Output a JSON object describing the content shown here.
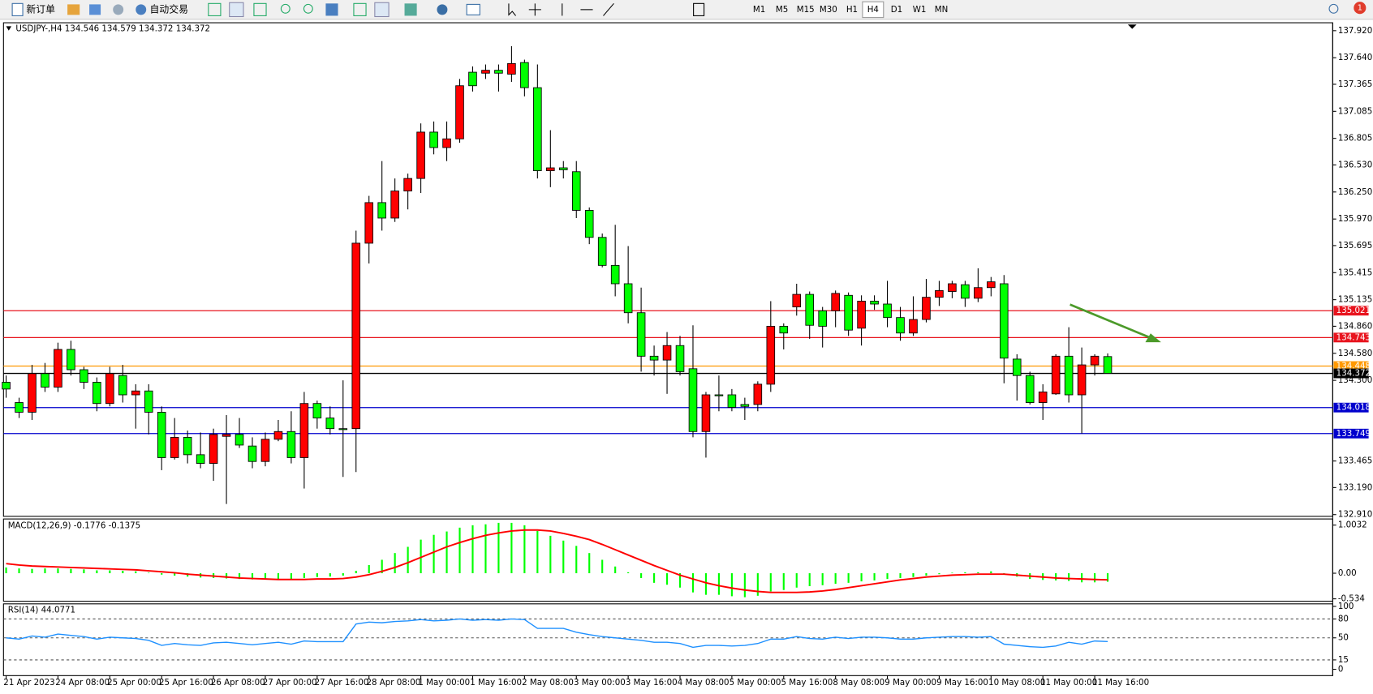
{
  "toolbar": {
    "buttons": [
      "新订单",
      "自动交易"
    ],
    "timeframes": [
      "M1",
      "M5",
      "M15",
      "M30",
      "H1",
      "H4",
      "D1",
      "W1",
      "MN"
    ],
    "active_timeframe_index": 5,
    "notification_count": 1
  },
  "chart_data": [
    {
      "type": "candlestick",
      "title": "USDJPY-,H4  134.546 134.579 134.372 134.372",
      "categories": [
        "21 Apr 2023",
        null,
        null,
        null,
        "24 Apr 08:00",
        null,
        null,
        null,
        "25 Apr 00:00",
        null,
        null,
        null,
        "25 Apr 16:00",
        null,
        null,
        null,
        "26 Apr 08:00",
        null,
        null,
        null,
        "27 Apr 00:00",
        null,
        null,
        null,
        "27 Apr 16:00",
        null,
        null,
        null,
        "28 Apr 08:00",
        null,
        null,
        null,
        "1 May 00:00",
        null,
        null,
        null,
        "1 May 16:00",
        null,
        null,
        null,
        "2 May 08:00",
        null,
        null,
        null,
        "3 May 00:00",
        null,
        null,
        null,
        "3 May 16:00",
        null,
        null,
        null,
        "4 May 08:00",
        null,
        null,
        null,
        "5 May 00:00",
        null,
        null,
        null,
        "5 May 16:00",
        null,
        null,
        null,
        "8 May 08:00",
        null,
        null,
        null,
        "9 May 00:00",
        null,
        null,
        null,
        "9 May 16:00",
        null,
        null,
        null,
        "10 May 08:00",
        null,
        null,
        null,
        "11 May 00:00",
        null,
        null,
        null,
        "11 May 16:00",
        null
      ],
      "open": [
        134.28,
        134.07,
        133.97,
        134.37,
        134.23,
        134.62,
        134.41,
        134.28,
        134.06,
        134.35,
        134.15,
        134.19,
        133.97,
        133.5,
        133.71,
        133.53,
        133.44,
        133.72,
        133.74,
        133.62,
        133.46,
        133.69,
        133.77,
        133.5,
        134.06,
        133.91,
        133.8,
        133.8,
        135.72,
        136.14,
        135.98,
        136.26,
        136.39,
        136.87,
        136.71,
        136.8,
        137.49,
        137.48,
        137.51,
        137.47,
        137.59,
        137.33,
        136.47,
        136.5,
        136.46,
        136.06,
        135.78,
        135.49,
        135.3,
        135.0,
        134.55,
        134.51,
        134.66,
        134.42,
        133.77,
        134.15,
        134.15,
        134.05,
        134.05,
        134.26,
        134.86,
        135.06,
        135.19,
        135.02,
        135.02,
        135.18,
        134.84,
        135.12,
        135.09,
        134.95,
        134.79,
        134.93,
        135.16,
        135.22,
        135.29,
        135.15,
        135.26,
        135.3,
        134.52,
        134.35,
        134.07,
        134.16,
        134.55,
        134.15,
        134.46,
        134.546
      ],
      "high": [
        134.35,
        134.12,
        134.46,
        134.48,
        134.69,
        134.71,
        134.44,
        134.33,
        134.44,
        134.46,
        134.26,
        134.26,
        134.03,
        133.91,
        133.78,
        133.76,
        133.8,
        133.94,
        133.91,
        133.71,
        133.76,
        133.89,
        133.98,
        134.18,
        134.09,
        134.03,
        134.3,
        135.85,
        136.21,
        136.57,
        136.39,
        136.44,
        136.96,
        136.98,
        136.98,
        137.42,
        137.55,
        137.57,
        137.57,
        137.76,
        137.62,
        137.57,
        136.89,
        136.57,
        136.57,
        136.09,
        135.82,
        135.91,
        135.69,
        135.26,
        134.66,
        134.8,
        134.76,
        134.87,
        134.18,
        134.35,
        134.21,
        134.12,
        134.29,
        135.12,
        134.89,
        135.3,
        135.22,
        135.06,
        135.23,
        135.21,
        135.18,
        135.18,
        135.33,
        135.06,
        135.17,
        135.35,
        135.33,
        135.33,
        135.33,
        135.46,
        135.37,
        135.39,
        134.57,
        134.39,
        134.26,
        134.57,
        134.85,
        134.64,
        134.57,
        134.579
      ],
      "low": [
        134.12,
        133.91,
        133.89,
        134.18,
        134.18,
        134.35,
        134.21,
        133.98,
        134.03,
        134.07,
        133.8,
        133.74,
        133.37,
        133.48,
        133.44,
        133.39,
        133.26,
        133.02,
        133.6,
        133.39,
        133.41,
        133.67,
        133.44,
        133.18,
        133.8,
        133.74,
        133.3,
        133.35,
        135.51,
        135.85,
        135.94,
        136.07,
        136.24,
        136.64,
        136.57,
        136.76,
        137.29,
        137.42,
        137.29,
        137.39,
        137.24,
        136.39,
        136.3,
        136.39,
        135.98,
        135.71,
        135.47,
        135.17,
        134.89,
        134.39,
        134.35,
        134.16,
        134.35,
        133.71,
        133.5,
        133.98,
        133.98,
        133.89,
        133.98,
        134.18,
        134.62,
        134.97,
        134.73,
        134.64,
        134.85,
        134.76,
        134.66,
        135.03,
        134.85,
        134.71,
        134.76,
        134.9,
        135.07,
        135.15,
        135.06,
        135.11,
        135.17,
        134.27,
        134.09,
        134.05,
        133.89,
        134.15,
        134.07,
        133.75,
        134.35,
        134.372
      ],
      "close": [
        134.21,
        133.97,
        134.37,
        134.23,
        134.62,
        134.41,
        134.28,
        134.06,
        134.37,
        134.15,
        134.19,
        133.97,
        133.5,
        133.71,
        133.53,
        133.44,
        133.74,
        133.74,
        133.63,
        133.46,
        133.69,
        133.77,
        133.5,
        134.06,
        133.91,
        133.8,
        133.79,
        135.72,
        136.14,
        135.98,
        136.26,
        136.39,
        136.87,
        136.71,
        136.8,
        137.35,
        137.35,
        137.51,
        137.48,
        137.58,
        137.33,
        136.47,
        136.5,
        136.48,
        136.06,
        135.78,
        135.49,
        135.3,
        135.0,
        134.55,
        134.51,
        134.66,
        134.39,
        133.77,
        134.15,
        134.14,
        134.02,
        134.03,
        134.26,
        134.86,
        134.79,
        135.19,
        134.87,
        134.86,
        135.2,
        134.82,
        135.12,
        135.09,
        134.95,
        134.79,
        134.93,
        135.16,
        135.23,
        135.3,
        135.15,
        135.26,
        135.32,
        134.53,
        134.35,
        134.07,
        134.18,
        134.55,
        134.15,
        134.46,
        134.55,
        134.372
      ],
      "up_color": "#ff0000",
      "down_color": "#00ff00",
      "ylim": [
        132.892,
        138.002
      ],
      "yticks": [
        {
          "value": 137.92,
          "label": "137.920"
        },
        {
          "value": 137.64,
          "label": "137.640"
        },
        137.365,
        137.085,
        136.805,
        {
          "value": 136.53,
          "label": "136.530"
        },
        {
          "value": 136.25,
          "label": "136.250"
        },
        {
          "value": 135.97,
          "label": "135.970"
        },
        135.695,
        135.415,
        135.135,
        {
          "value": 134.86,
          "label": "134.860"
        },
        {
          "value": 134.58,
          "label": "134.580"
        },
        {
          "value": 134.3,
          "label": "134.300"
        },
        133.465,
        {
          "value": 133.19,
          "label": "133.190"
        },
        {
          "value": 132.91,
          "label": "132.910"
        }
      ],
      "hlines": [
        {
          "value": 135.021,
          "color": "#e8141e"
        },
        {
          "value": 134.743,
          "color": "#e8141e"
        },
        {
          "value": 134.448,
          "color": "#ff9900"
        },
        {
          "value": 134.372,
          "color": "#000000"
        },
        {
          "value": 134.018,
          "color": "#0000cd"
        },
        {
          "value": 133.749,
          "color": "#0000cd"
        }
      ]
    },
    {
      "type": "macd",
      "title": "MACD(12,26,9) -0.1776 -0.1375",
      "series": [
        {
          "style": "bar",
          "color": "#00ff00",
          "values": [
            0.12,
            0.1,
            0.09,
            0.1,
            0.1,
            0.09,
            0.08,
            0.06,
            0.06,
            0.05,
            0.04,
            0.01,
            -0.03,
            -0.05,
            -0.07,
            -0.09,
            -0.1,
            -0.11,
            -0.12,
            -0.13,
            -0.13,
            -0.12,
            -0.12,
            -0.1,
            -0.08,
            -0.07,
            -0.05,
            0.05,
            0.17,
            0.28,
            0.42,
            0.55,
            0.7,
            0.8,
            0.87,
            0.95,
            1.0,
            1.02,
            1.05,
            1.05,
            1.0,
            0.88,
            0.78,
            0.68,
            0.57,
            0.42,
            0.28,
            0.14,
            0.02,
            -0.1,
            -0.2,
            -0.24,
            -0.3,
            -0.4,
            -0.45,
            -0.45,
            -0.48,
            -0.5,
            -0.47,
            -0.38,
            -0.35,
            -0.3,
            -0.27,
            -0.25,
            -0.22,
            -0.2,
            -0.17,
            -0.15,
            -0.12,
            -0.1,
            -0.08,
            -0.05,
            -0.02,
            0.01,
            0.02,
            0.02,
            0.04,
            -0.02,
            -0.07,
            -0.12,
            -0.14,
            -0.15,
            -0.16,
            -0.19,
            -0.19,
            -0.1776
          ]
        },
        {
          "style": "line",
          "color": "#ff0000",
          "values": [
            0.2,
            0.17,
            0.15,
            0.14,
            0.13,
            0.12,
            0.11,
            0.1,
            0.09,
            0.08,
            0.07,
            0.05,
            0.03,
            0.01,
            -0.02,
            -0.04,
            -0.06,
            -0.08,
            -0.1,
            -0.11,
            -0.12,
            -0.13,
            -0.13,
            -0.13,
            -0.12,
            -0.12,
            -0.11,
            -0.08,
            -0.03,
            0.04,
            0.12,
            0.22,
            0.33,
            0.44,
            0.55,
            0.64,
            0.72,
            0.79,
            0.84,
            0.88,
            0.9,
            0.9,
            0.88,
            0.83,
            0.77,
            0.7,
            0.6,
            0.49,
            0.38,
            0.27,
            0.16,
            0.06,
            -0.04,
            -0.12,
            -0.2,
            -0.26,
            -0.31,
            -0.35,
            -0.38,
            -0.4,
            -0.4,
            -0.4,
            -0.39,
            -0.37,
            -0.34,
            -0.3,
            -0.26,
            -0.22,
            -0.18,
            -0.14,
            -0.11,
            -0.08,
            -0.06,
            -0.04,
            -0.03,
            -0.02,
            -0.02,
            -0.02,
            -0.04,
            -0.06,
            -0.08,
            -0.1,
            -0.11,
            -0.12,
            -0.13,
            -0.1375
          ]
        }
      ],
      "ylim": [
        -0.584,
        1.131
      ],
      "yticks": [
        1.0032,
        {
          "value": 0,
          "label": "0.00"
        },
        -0.534
      ]
    },
    {
      "type": "line",
      "title": "RSI(14) 44.0771",
      "series": [
        {
          "color": "#1e90ff",
          "values": [
            50,
            48,
            53,
            51,
            56,
            54,
            52,
            48,
            51,
            50,
            49,
            46,
            38,
            41,
            39,
            38,
            42,
            43,
            41,
            39,
            41,
            43,
            40,
            45,
            44,
            44,
            44,
            72,
            75,
            74,
            76,
            77,
            79,
            77,
            78,
            80,
            78,
            79,
            78,
            80,
            79,
            65,
            65,
            65,
            59,
            55,
            52,
            50,
            48,
            46,
            43,
            43,
            41,
            35,
            38,
            38,
            37,
            38,
            41,
            48,
            48,
            52,
            49,
            48,
            51,
            49,
            51,
            51,
            50,
            48,
            48,
            50,
            51,
            52,
            52,
            51,
            52,
            40,
            38,
            36,
            35,
            37,
            43,
            40,
            45,
            44.0771
          ]
        }
      ],
      "ylim": [
        -10,
        104
      ],
      "yticks": [
        100,
        80,
        50,
        15,
        0
      ],
      "levels": [
        80,
        50,
        15
      ]
    }
  ]
}
